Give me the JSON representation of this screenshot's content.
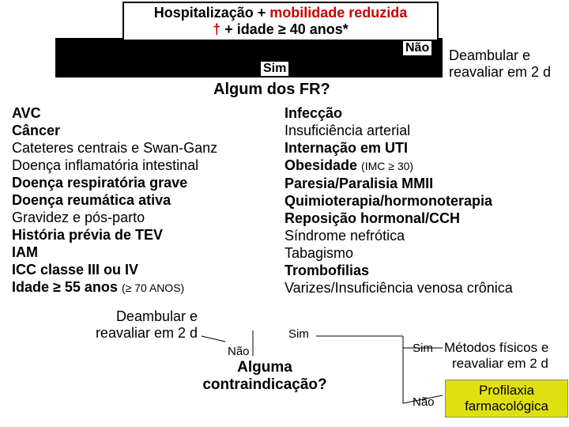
{
  "header": {
    "black1": "Hospitalização + ",
    "red1": "mobilidade reduzida",
    "red2": "†",
    "black2": " + idade ",
    "symbol": "≥ 4",
    "black3": "0 anos*"
  },
  "labels": {
    "nao": "Não",
    "sim": "Sim"
  },
  "deambular": {
    "line1": "Deambular e",
    "line2": "reavaliar em 2 d"
  },
  "fr_heading": "Algum dos FR?",
  "left_items": [
    {
      "t": "AVC",
      "b": true
    },
    {
      "t": "Câncer",
      "b": true
    },
    {
      "t": "Cateteres centrais e Swan-Ganz",
      "b": false
    },
    {
      "t": "Doença inflamatória intestinal",
      "b": false
    },
    {
      "t": "Doença respiratória grave",
      "b": true
    },
    {
      "t": "Doença reumática ativa",
      "b": true
    },
    {
      "t": "Gravidez e pós-parto",
      "b": false
    },
    {
      "t": "História prévia de TEV",
      "b": true
    },
    {
      "t": "IAM",
      "b": true
    },
    {
      "t": "ICC classe III ou IV",
      "b": true
    }
  ],
  "left_last": {
    "prefix": "Idade ≥ 55 anos ",
    "suffix": "(≥ 70 ANOS)"
  },
  "right_items": [
    {
      "t": "Infecção",
      "b": true
    },
    {
      "t": "Insuficiência arterial",
      "b": false
    },
    {
      "t": "Internação em UTI",
      "b": true
    },
    {
      "t1": "Obesidade ",
      "t2": "(IMC ≥ 30)"
    },
    {
      "t": "Paresia/Paralisia MMII",
      "b": true
    },
    {
      "t": "Quimioterapia/hormonoterapia",
      "b": true
    },
    {
      "t": "Reposição hormonal/CCH",
      "b": true
    },
    {
      "t": "Síndrome nefrótica",
      "b": false
    },
    {
      "t": "Tabagismo",
      "b": false
    },
    {
      "t": "Trombofilias",
      "b": true
    },
    {
      "t": "Varizes/Insuficiência venosa crônica",
      "b": false
    }
  ],
  "contraind": {
    "l1": "Alguma",
    "l2": "contraindicação?"
  },
  "metodos": {
    "l1": "Métodos físicos e",
    "l2": "reavaliar em 2 d"
  },
  "profilaxia": {
    "l1": "Profilaxia",
    "l2": "farmacológica"
  },
  "colors": {
    "red": "#c00000",
    "yellow": "#e0e010",
    "black": "#000000",
    "white": "#ffffff"
  }
}
